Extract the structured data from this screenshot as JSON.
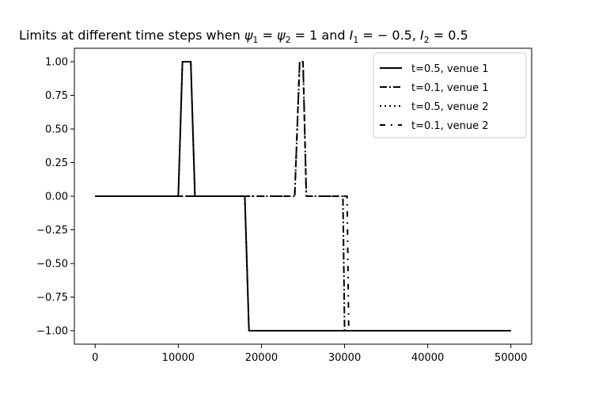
{
  "chart_data": {
    "type": "line",
    "title": "Limits at different time steps when ψ1 = ψ2 = 1 and I1 = −0.5, I2 = 0.5",
    "title_parts": {
      "prefix": "Limits at different time steps when ",
      "psi": "ψ",
      "psi1_sub": "1",
      "psi2_sub": "2",
      "eq_one": " = 1 and ",
      "I": "I",
      "I1_sub": "1",
      "I1_val": " = − 0.5, ",
      "I2_sub": "2",
      "I2_val": " = 0.5",
      "eq": " = "
    },
    "xlabel": "",
    "ylabel": "",
    "xlim": [
      -2500,
      52500
    ],
    "ylim": [
      -1.1,
      1.1
    ],
    "x_ticks": [
      0,
      10000,
      20000,
      30000,
      40000,
      50000
    ],
    "x_tick_labels": [
      "0",
      "10000",
      "20000",
      "30000",
      "40000",
      "50000"
    ],
    "y_ticks": [
      1.0,
      0.75,
      0.5,
      0.25,
      0.0,
      -0.25,
      -0.5,
      -0.75,
      -1.0
    ],
    "y_tick_labels": [
      "1.00",
      "0.75",
      "0.50",
      "0.25",
      "0.00",
      "−0.25",
      "−0.50",
      "−0.75",
      "−1.00"
    ],
    "grid": false,
    "legend_position": "top-right",
    "series": [
      {
        "name": "t=0.5, venue 1",
        "style": "solid",
        "x": [
          0,
          10000,
          10500,
          11500,
          12000,
          18000,
          18500,
          50000
        ],
        "y": [
          0,
          0,
          1,
          1,
          0,
          0,
          -1,
          -1
        ]
      },
      {
        "name": "t=0.1, venue 1",
        "style": "dashdot",
        "x": [
          0,
          24000,
          24600,
          25000,
          25400,
          29800,
          30000,
          50000
        ],
        "y": [
          0,
          0,
          1,
          1,
          0,
          0,
          -1,
          -1
        ]
      },
      {
        "name": "t=0.5, venue 2",
        "style": "dotted",
        "x": [
          0,
          10000,
          10500,
          11500,
          12000,
          18000,
          18500,
          50000
        ],
        "y": [
          0,
          0,
          1,
          1,
          0,
          0,
          -1,
          -1
        ]
      },
      {
        "name": "t=0.1, venue 2",
        "style": "loosedashdot",
        "x": [
          0,
          24000,
          24600,
          25000,
          25400,
          30300,
          30500,
          50000
        ],
        "y": [
          0,
          0,
          1,
          1,
          0,
          0,
          -1,
          -1
        ]
      }
    ]
  }
}
